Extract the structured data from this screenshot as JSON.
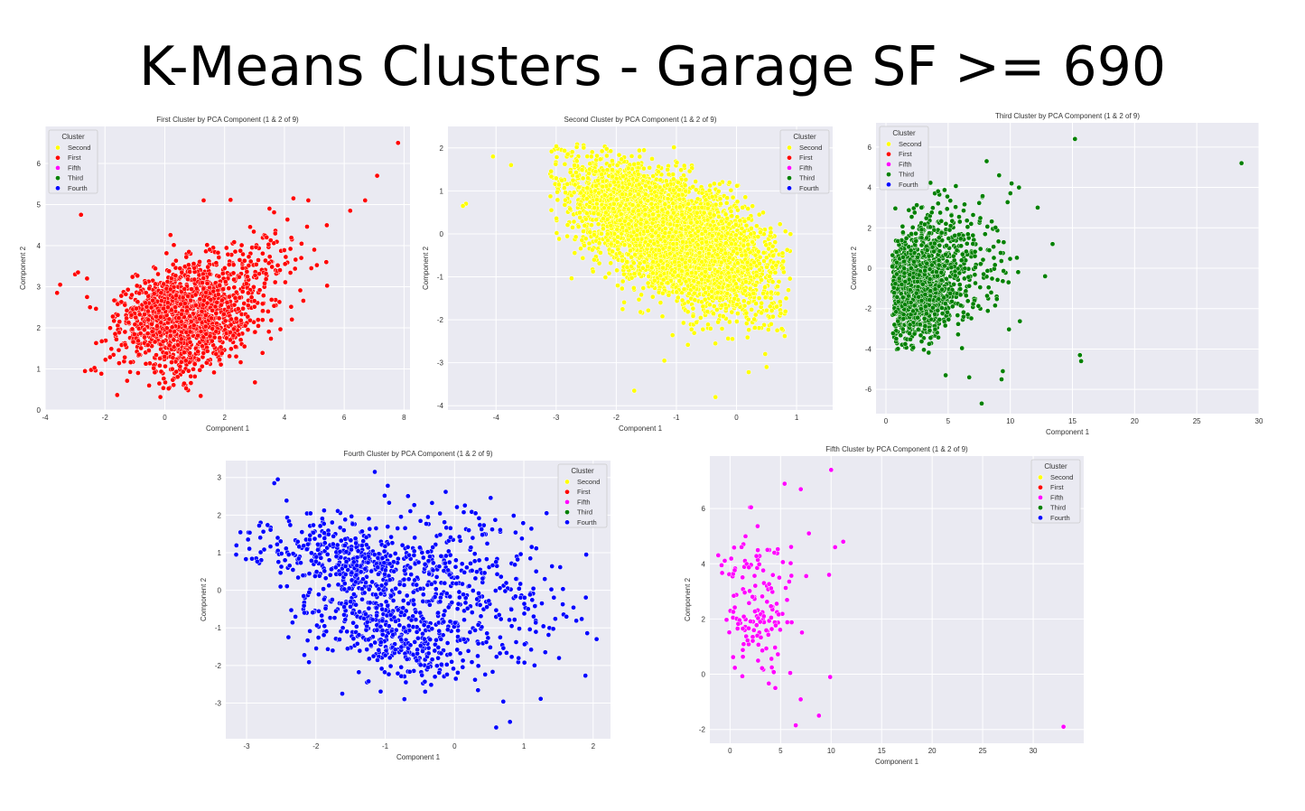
{
  "slide": {
    "title": "K-Means Clusters - Garage SF >= 690"
  },
  "legend": {
    "title": "Cluster",
    "entries": [
      {
        "name": "Second",
        "color": "#ffff00"
      },
      {
        "name": "First",
        "color": "#ff0000"
      },
      {
        "name": "Fifth",
        "color": "#ff00ff"
      },
      {
        "name": "Third",
        "color": "#008000"
      },
      {
        "name": "Fourth",
        "color": "#0000ff"
      }
    ]
  },
  "chart_data": [
    {
      "id": "first",
      "type": "scatter",
      "title": "First Cluster by PCA Component (1 & 2 of 9)",
      "xlabel": "Component 1",
      "ylabel": "Component 2",
      "xlim": [
        -4,
        8.2
      ],
      "ylim": [
        0,
        6.9
      ],
      "xticks": [
        -4,
        -2,
        0,
        2,
        4,
        6,
        8
      ],
      "yticks": [
        0,
        1,
        2,
        3,
        4,
        5,
        6
      ],
      "legend_position": "upper left",
      "color": "#ff0000",
      "n_points": 1500,
      "seed": 11,
      "clusters": [
        {
          "cx": 0.2,
          "cy": 2.5,
          "sx": 0.9,
          "sy": 0.55,
          "w": 0.55
        },
        {
          "cx": 1.2,
          "cy": 1.8,
          "sx": 0.9,
          "sy": 0.55,
          "w": 0.3
        },
        {
          "cx": 2.6,
          "cy": 3.0,
          "sx": 1.0,
          "sy": 0.8,
          "w": 0.15
        }
      ],
      "corr": 0.45,
      "clip": {
        "xmin": -3.6,
        "xmax": 5.6,
        "ymin": 0.3,
        "ymax": 5.2
      },
      "outliers": [
        [
          7.8,
          6.5
        ],
        [
          7.1,
          5.7
        ],
        [
          6.7,
          5.1
        ],
        [
          6.2,
          4.85
        ],
        [
          4.8,
          5.1
        ],
        [
          4.3,
          5.15
        ],
        [
          3.5,
          4.9
        ],
        [
          -2.8,
          4.75
        ],
        [
          -3.5,
          3.05
        ],
        [
          -3.6,
          2.85
        ],
        [
          -3.0,
          3.3
        ],
        [
          -2.9,
          3.35
        ],
        [
          -2.6,
          3.2
        ],
        [
          -2.6,
          2.75
        ],
        [
          -2.5,
          2.5
        ],
        [
          1.3,
          5.1
        ],
        [
          5.4,
          3.6
        ],
        [
          5.0,
          3.9
        ],
        [
          4.9,
          3.45
        ]
      ]
    },
    {
      "id": "second",
      "type": "scatter",
      "title": "Second Cluster by PCA Component (1 & 2 of 9)",
      "xlabel": "Component 1",
      "ylabel": "Component 2",
      "xlim": [
        -4.8,
        1.6
      ],
      "ylim": [
        -4.1,
        2.5
      ],
      "xticks": [
        -4,
        -3,
        -2,
        -1,
        0,
        1
      ],
      "yticks": [
        -4,
        -3,
        -2,
        -1,
        0,
        1,
        2
      ],
      "legend_position": "upper right",
      "color": "#ffff00",
      "n_points": 4500,
      "seed": 23,
      "clusters": [
        {
          "cx": -0.8,
          "cy": -0.3,
          "sx": 0.7,
          "sy": 0.75,
          "w": 0.75
        },
        {
          "cx": -1.8,
          "cy": 0.6,
          "sx": 0.6,
          "sy": 0.6,
          "w": 0.25
        }
      ],
      "corr": -0.45,
      "clip": {
        "xmin": -3.1,
        "xmax": 0.9,
        "ymin": -3.3,
        "ymax": 2.1
      },
      "outliers": [
        [
          -4.5,
          0.7
        ],
        [
          -4.55,
          0.65
        ],
        [
          -4.05,
          1.8
        ],
        [
          -3.75,
          1.6
        ],
        [
          -1.7,
          -3.65
        ],
        [
          -0.35,
          -3.8
        ],
        [
          0.5,
          -3.1
        ],
        [
          -1.2,
          -2.95
        ]
      ]
    },
    {
      "id": "third",
      "type": "scatter",
      "title": "Third Cluster by PCA Component (1 & 2 of 9)",
      "xlabel": "Component 1",
      "ylabel": "Component 2",
      "xlim": [
        -0.8,
        30
      ],
      "ylim": [
        -7.2,
        7.2
      ],
      "xticks": [
        0,
        5,
        10,
        15,
        20,
        25,
        30
      ],
      "yticks": [
        -6,
        -4,
        -2,
        0,
        2,
        4,
        6
      ],
      "legend_position": "upper left",
      "color": "#008000",
      "n_points": 1500,
      "seed": 37,
      "clusters": [
        {
          "cx": 2.4,
          "cy": -0.9,
          "sx": 1.4,
          "sy": 1.3,
          "w": 0.8
        },
        {
          "cx": 5.5,
          "cy": 0.2,
          "sx": 2.3,
          "sy": 1.8,
          "w": 0.2
        }
      ],
      "corr": 0.1,
      "clip": {
        "xmin": 0.5,
        "xmax": 12,
        "ymin": -4.2,
        "ymax": 4.5
      },
      "outliers": [
        [
          15.2,
          6.4
        ],
        [
          28.6,
          5.2
        ],
        [
          15.6,
          -4.3
        ],
        [
          15.7,
          -4.6
        ],
        [
          13.4,
          1.2
        ],
        [
          12.8,
          -0.4
        ],
        [
          9.4,
          -5.1
        ],
        [
          9.3,
          -5.5
        ],
        [
          7.7,
          -6.7
        ],
        [
          6.7,
          -5.4
        ],
        [
          4.8,
          -5.3
        ],
        [
          8.1,
          5.3
        ],
        [
          10.1,
          4.2
        ],
        [
          10.7,
          4.0
        ],
        [
          9.1,
          4.6
        ],
        [
          12.2,
          3.0
        ]
      ]
    },
    {
      "id": "fourth",
      "type": "scatter",
      "title": "Fourth Cluster by PCA Component (1 & 2 of 9)",
      "xlabel": "Component 1",
      "ylabel": "Component 2",
      "xlim": [
        -3.3,
        2.25
      ],
      "ylim": [
        -3.95,
        3.45
      ],
      "xticks": [
        -3,
        -2,
        -1,
        0,
        1,
        2
      ],
      "yticks": [
        -3,
        -2,
        -1,
        0,
        1,
        2,
        3
      ],
      "legend_position": "upper right",
      "color": "#0000ff",
      "n_points": 1150,
      "seed": 53,
      "clusters": [
        {
          "cx": -1.5,
          "cy": 0.8,
          "sx": 0.75,
          "sy": 0.55,
          "w": 0.35
        },
        {
          "cx": -0.9,
          "cy": -1.1,
          "sx": 0.6,
          "sy": 0.6,
          "w": 0.35
        },
        {
          "cx": 0.3,
          "cy": 0.0,
          "sx": 0.8,
          "sy": 1.1,
          "w": 0.3
        }
      ],
      "corr": -0.35,
      "clip": {
        "xmin": -3.2,
        "xmax": 2.0,
        "ymin": -3.4,
        "ymax": 2.9
      },
      "outliers": [
        [
          -1.15,
          3.15
        ],
        [
          -2.55,
          2.95
        ],
        [
          -2.6,
          2.85
        ],
        [
          0.6,
          -3.65
        ],
        [
          0.8,
          -3.5
        ],
        [
          2.05,
          -1.3
        ],
        [
          1.9,
          0.95
        ],
        [
          -3.15,
          0.95
        ]
      ]
    },
    {
      "id": "fifth",
      "type": "scatter",
      "title": "Fifth Cluster by PCA Component (1 & 2 of 9)",
      "xlabel": "Component 1",
      "ylabel": "Component 2",
      "xlim": [
        -2,
        35
      ],
      "ylim": [
        -2.5,
        7.9
      ],
      "xticks": [
        0,
        5,
        10,
        15,
        20,
        25,
        30
      ],
      "yticks": [
        -2,
        0,
        2,
        4,
        6
      ],
      "legend_position": "upper right",
      "color": "#ff00ff",
      "n_points": 150,
      "seed": 71,
      "clusters": [
        {
          "cx": 2.8,
          "cy": 2.6,
          "sx": 1.9,
          "sy": 1.5,
          "w": 1.0
        }
      ],
      "corr": -0.1,
      "clip": {
        "xmin": -1.2,
        "xmax": 9.5,
        "ymin": -1.8,
        "ymax": 7.0
      },
      "outliers": [
        [
          33.0,
          -1.9
        ],
        [
          10.0,
          7.4
        ],
        [
          9.8,
          3.6
        ],
        [
          9.9,
          -0.1
        ],
        [
          11.2,
          4.8
        ],
        [
          10.4,
          4.6
        ],
        [
          8.8,
          -1.5
        ],
        [
          6.5,
          -1.85
        ],
        [
          7.8,
          5.1
        ],
        [
          7.0,
          6.7
        ],
        [
          5.4,
          6.9
        ]
      ]
    }
  ]
}
